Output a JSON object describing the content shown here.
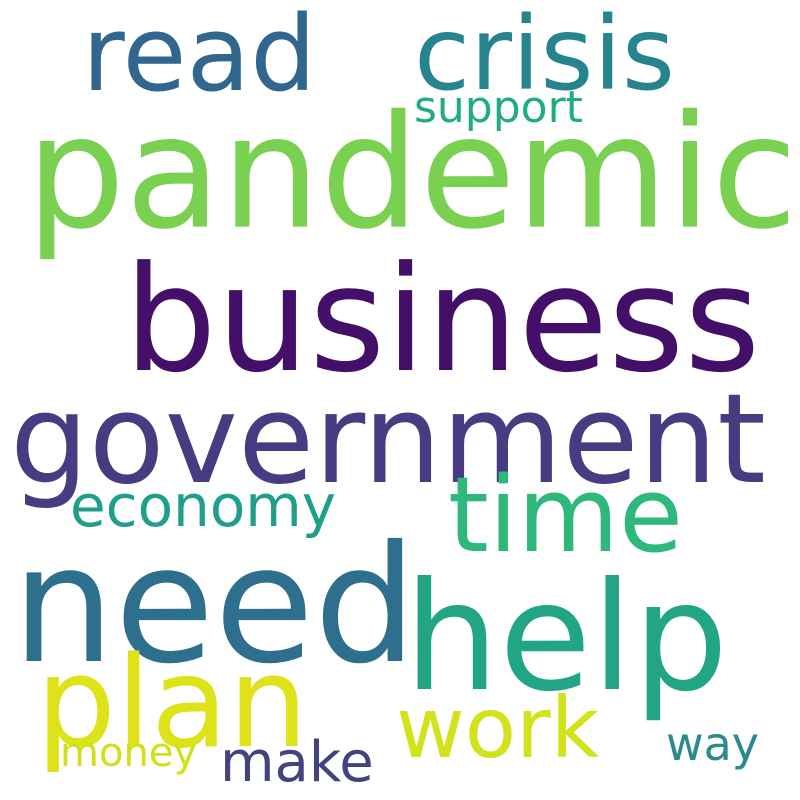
{
  "words": {
    "read": {
      "text": "read",
      "color": "#31678e"
    },
    "crisis": {
      "text": "crisis",
      "color": "#26848e"
    },
    "support": {
      "text": "support",
      "color": "#21ab84"
    },
    "pandemic": {
      "text": "pandemic",
      "color": "#7ad151"
    },
    "business": {
      "text": "business",
      "color": "#440f68"
    },
    "government": {
      "text": "government",
      "color": "#473b82"
    },
    "economy": {
      "text": "economy",
      "color": "#1f9e89"
    },
    "time": {
      "text": "time",
      "color": "#2fb87b"
    },
    "need": {
      "text": "need",
      "color": "#2e6f8e"
    },
    "help": {
      "text": "help",
      "color": "#21a585"
    },
    "plan": {
      "text": "plan",
      "color": "#dde318"
    },
    "work": {
      "text": "work",
      "color": "#d2e21b"
    },
    "way": {
      "text": "way",
      "color": "#2a8a8c"
    },
    "money": {
      "text": "money",
      "color": "#cfe11c"
    },
    "make": {
      "text": "make",
      "color": "#43437f"
    }
  }
}
